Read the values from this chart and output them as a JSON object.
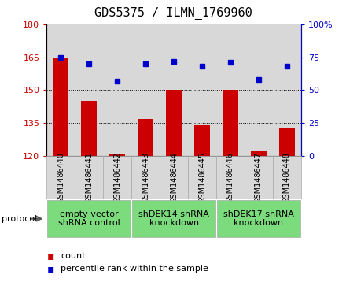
{
  "title": "GDS5375 / ILMN_1769960",
  "samples": [
    "GSM1486440",
    "GSM1486441",
    "GSM1486442",
    "GSM1486443",
    "GSM1486444",
    "GSM1486445",
    "GSM1486446",
    "GSM1486447",
    "GSM1486448"
  ],
  "counts": [
    165,
    145,
    121,
    137,
    150,
    134,
    150,
    122,
    133
  ],
  "percentile_ranks": [
    75,
    70,
    57,
    70,
    72,
    68,
    71,
    58,
    68
  ],
  "ylim_left": [
    120,
    180
  ],
  "ylim_right": [
    0,
    100
  ],
  "yticks_left": [
    120,
    135,
    150,
    165,
    180
  ],
  "yticks_right": [
    0,
    25,
    50,
    75,
    100
  ],
  "bar_color": "#cc0000",
  "dot_color": "#0000cc",
  "bar_bottom": 120,
  "groups": [
    {
      "label": "empty vector\nshRNA control",
      "start": 0,
      "end": 3
    },
    {
      "label": "shDEK14 shRNA\nknockdown",
      "start": 3,
      "end": 6
    },
    {
      "label": "shDEK17 shRNA\nknockdown",
      "start": 6,
      "end": 9
    }
  ],
  "protocol_label": "protocol",
  "legend_count_label": "count",
  "legend_percentile_label": "percentile rank within the sample",
  "col_bg_color": "#d8d8d8",
  "plot_bg": "#ffffff",
  "group_color": "#7cdb7c",
  "title_fontsize": 11,
  "tick_fontsize": 8,
  "sample_fontsize": 7,
  "group_fontsize": 8,
  "legend_fontsize": 8
}
